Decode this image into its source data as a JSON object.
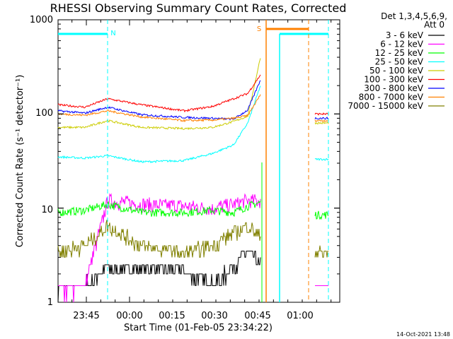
{
  "chart_data": {
    "type": "line",
    "title": "RHESSI Observing Summary Count Rates, Corrected",
    "xlabel": "Start Time (01-Feb-05 23:34:22)",
    "ylabel": "Corrected Count Rate (s⁻¹ detector⁻¹)",
    "y_scale": "log",
    "ylim": [
      1,
      1000
    ],
    "y_ticks": [
      "1",
      "10",
      "100",
      "1000"
    ],
    "x_ticks": [
      "23:45",
      "00:00",
      "00:15",
      "00:30",
      "00:45",
      "01:00"
    ],
    "legend_header": [
      "Det 1,3,4,5,6,9,",
      "Att 0"
    ],
    "legend_placement": "right",
    "footer": "14-Oct-2021 13:48",
    "flags": [
      {
        "label": "N",
        "color": "#00ffff"
      },
      {
        "label": "S",
        "color": "#ff8000"
      }
    ],
    "series": [
      {
        "name": "3 - 6 keV",
        "color": "#000000",
        "values": [
          1.5,
          1.5,
          2.3,
          2.3,
          2.2,
          1.5,
          2.4,
          3.5,
          2.4,
          1.0
        ]
      },
      {
        "name": "6 - 12 keV",
        "color": "#ff00ff",
        "values": [
          1.5,
          1.5,
          12,
          11,
          10.5,
          10,
          11,
          12,
          12,
          1.5
        ]
      },
      {
        "name": "12 - 25 keV",
        "color": "#00ff00",
        "values": [
          9,
          9.5,
          11,
          9,
          9,
          9.5,
          9,
          10.5,
          11.5,
          8.5
        ]
      },
      {
        "name": "25 - 50 keV",
        "color": "#00ffff",
        "values": [
          35,
          34,
          36,
          31,
          32,
          38,
          47,
          80,
          200,
          33
        ]
      },
      {
        "name": "50 - 100 keV",
        "color": "#cccc00",
        "values": [
          72,
          72,
          85,
          72,
          70,
          72,
          83,
          95,
          400,
          80
        ]
      },
      {
        "name": "100 - 300 keV",
        "color": "#ff0000",
        "values": [
          125,
          118,
          145,
          125,
          108,
          120,
          145,
          165,
          260,
          100
        ]
      },
      {
        "name": "300 - 800 keV",
        "color": "#0000ff",
        "values": [
          108,
          102,
          118,
          98,
          92,
          90,
          88,
          110,
          230,
          90
        ]
      },
      {
        "name": "800 - 7000 keV",
        "color": "#ff8000",
        "values": [
          100,
          97,
          108,
          93,
          85,
          86,
          90,
          96,
          160,
          85
        ]
      },
      {
        "name": "7000 - 15000 keV",
        "color": "#808000",
        "values": [
          3.5,
          4.0,
          6.5,
          4.0,
          3.3,
          4.0,
          5.5,
          6.5,
          5.0,
          3.4
        ]
      }
    ]
  }
}
